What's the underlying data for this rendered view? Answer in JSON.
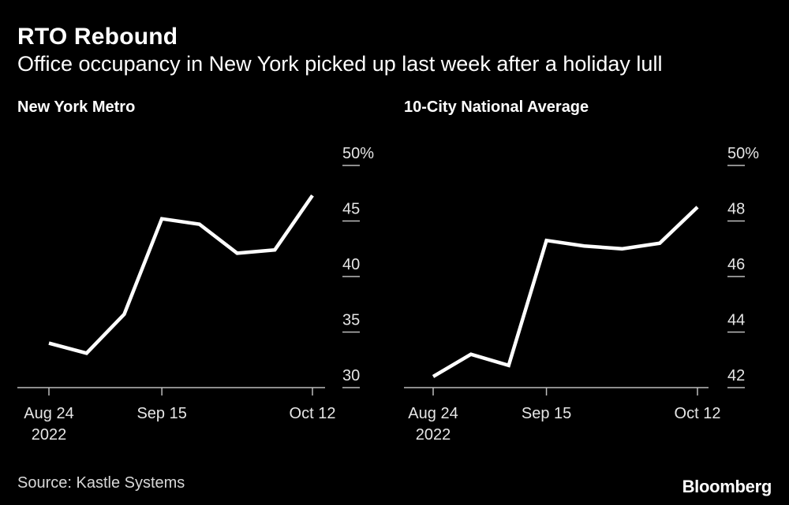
{
  "title": "RTO Rebound",
  "subtitle": "Office occupancy in New York picked up last week after a holiday lull",
  "source": "Source: Kastle Systems",
  "logo": "Bloomberg",
  "colors": {
    "background": "#000000",
    "line": "#ffffff",
    "text": "#ffffff"
  },
  "chart_data": [
    {
      "type": "line",
      "title": "New York Metro",
      "x": [
        "2022-08-24",
        "2022-08-31",
        "2022-09-07",
        "2022-09-14",
        "2022-09-21",
        "2022-09-28",
        "2022-10-05",
        "2022-10-12"
      ],
      "values": [
        34.0,
        33.1,
        36.6,
        45.2,
        44.7,
        42.1,
        42.4,
        47.3
      ],
      "xticks": [
        {
          "label": "Aug 24",
          "sub": "2022",
          "index": 0
        },
        {
          "label": "Sep 15",
          "sub": "",
          "index": 3
        },
        {
          "label": "Oct 12",
          "sub": "",
          "index": 7
        }
      ],
      "yticks": [
        "30",
        "35",
        "40",
        "45",
        "50%"
      ],
      "ylim": [
        30,
        50
      ],
      "grid": false,
      "y_axis_side": "right"
    },
    {
      "type": "line",
      "title": "10-City National Average",
      "x": [
        "2022-08-24",
        "2022-08-31",
        "2022-09-07",
        "2022-09-14",
        "2022-09-21",
        "2022-09-28",
        "2022-10-05",
        "2022-10-12"
      ],
      "values": [
        42.4,
        43.2,
        42.8,
        47.3,
        47.1,
        47.0,
        47.2,
        48.5
      ],
      "xticks": [
        {
          "label": "Aug 24",
          "sub": "2022",
          "index": 0
        },
        {
          "label": "Sep 15",
          "sub": "",
          "index": 3
        },
        {
          "label": "Oct 12",
          "sub": "",
          "index": 7
        }
      ],
      "yticks": [
        "42",
        "44",
        "46",
        "48",
        "50%"
      ],
      "ylim": [
        42,
        50
      ],
      "grid": false,
      "y_axis_side": "right"
    }
  ]
}
